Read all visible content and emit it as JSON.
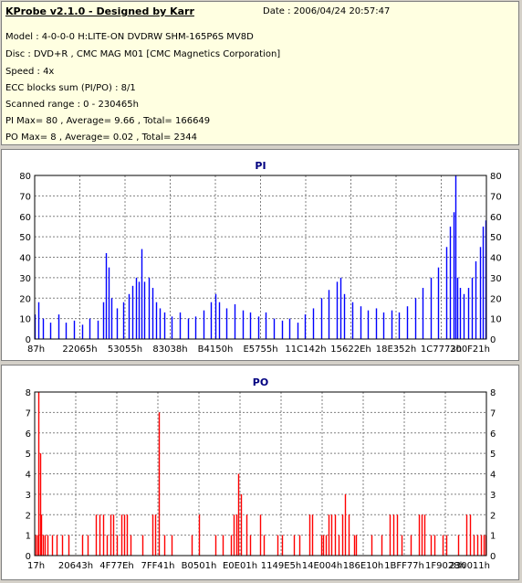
{
  "header": {
    "title": "KProbe v2.1.0 - Designed by Karr",
    "date": "Date : 2006/04/24 20:57:47",
    "lines": [
      "Model : 4-0-0-0 H:LITE-ON DVDRW SHM-165P6S MV8D",
      "Disc : DVD+R , CMC MAG M01 [CMC Magnetics Corporation]",
      "Speed : 4x",
      "ECC blocks sum (PI/PO) : 8/1",
      "Scanned range : 0 - 230465h",
      "PI Max= 80 , Average= 9.66 , Total= 166649",
      "PO Max= 8 , Average= 0.02 , Total= 2344"
    ]
  },
  "colors": {
    "pi": "#0000ff",
    "po": "#ff0000",
    "grid": "#808080",
    "title": "#000080"
  },
  "chart_data": [
    {
      "type": "bar",
      "title": "PI",
      "ylim": [
        0,
        80
      ],
      "yticks": [
        0,
        10,
        20,
        30,
        40,
        50,
        60,
        70,
        80
      ],
      "xlim": [
        0,
        230465
      ],
      "xtick_labels": [
        "87h",
        "22065h",
        "53055h",
        "83038h",
        "B4150h",
        "E5755h",
        "11C142h",
        "15622Eh",
        "18E352h",
        "1C7773h",
        "200F21h"
      ],
      "series": [
        {
          "values": [
            {
              "x": 0,
              "y": 12
            },
            {
              "x": 2000,
              "y": 18
            },
            {
              "x": 4000,
              "y": 10
            },
            {
              "x": 8000,
              "y": 8
            },
            {
              "x": 12000,
              "y": 12
            },
            {
              "x": 16000,
              "y": 8
            },
            {
              "x": 20000,
              "y": 9
            },
            {
              "x": 24000,
              "y": 7
            },
            {
              "x": 28000,
              "y": 10
            },
            {
              "x": 32000,
              "y": 9
            },
            {
              "x": 35000,
              "y": 18
            },
            {
              "x": 36500,
              "y": 42
            },
            {
              "x": 37500,
              "y": 35
            },
            {
              "x": 39000,
              "y": 20
            },
            {
              "x": 42000,
              "y": 15
            },
            {
              "x": 45000,
              "y": 18
            },
            {
              "x": 48000,
              "y": 22
            },
            {
              "x": 50000,
              "y": 26
            },
            {
              "x": 51500,
              "y": 30
            },
            {
              "x": 53000,
              "y": 28
            },
            {
              "x": 54500,
              "y": 44
            },
            {
              "x": 56000,
              "y": 28
            },
            {
              "x": 58000,
              "y": 30
            },
            {
              "x": 60000,
              "y": 25
            },
            {
              "x": 62000,
              "y": 18
            },
            {
              "x": 64000,
              "y": 15
            },
            {
              "x": 66000,
              "y": 13
            },
            {
              "x": 70000,
              "y": 11
            },
            {
              "x": 74000,
              "y": 13
            },
            {
              "x": 78000,
              "y": 10
            },
            {
              "x": 82000,
              "y": 11
            },
            {
              "x": 86000,
              "y": 14
            },
            {
              "x": 90000,
              "y": 18
            },
            {
              "x": 92000,
              "y": 22
            },
            {
              "x": 94000,
              "y": 18
            },
            {
              "x": 98000,
              "y": 15
            },
            {
              "x": 102000,
              "y": 17
            },
            {
              "x": 106000,
              "y": 14
            },
            {
              "x": 110000,
              "y": 13
            },
            {
              "x": 114000,
              "y": 11
            },
            {
              "x": 118000,
              "y": 13
            },
            {
              "x": 122000,
              "y": 10
            },
            {
              "x": 126000,
              "y": 9
            },
            {
              "x": 130000,
              "y": 10
            },
            {
              "x": 134000,
              "y": 8
            },
            {
              "x": 138000,
              "y": 12
            },
            {
              "x": 142000,
              "y": 15
            },
            {
              "x": 146000,
              "y": 20
            },
            {
              "x": 150000,
              "y": 24
            },
            {
              "x": 154000,
              "y": 28
            },
            {
              "x": 156000,
              "y": 30
            },
            {
              "x": 158000,
              "y": 22
            },
            {
              "x": 162000,
              "y": 18
            },
            {
              "x": 166000,
              "y": 16
            },
            {
              "x": 170000,
              "y": 14
            },
            {
              "x": 174000,
              "y": 15
            },
            {
              "x": 178000,
              "y": 13
            },
            {
              "x": 182000,
              "y": 14
            },
            {
              "x": 186000,
              "y": 13
            },
            {
              "x": 190000,
              "y": 16
            },
            {
              "x": 194000,
              "y": 20
            },
            {
              "x": 198000,
              "y": 25
            },
            {
              "x": 202000,
              "y": 30
            },
            {
              "x": 206000,
              "y": 35
            },
            {
              "x": 210000,
              "y": 45
            },
            {
              "x": 212000,
              "y": 55
            },
            {
              "x": 213500,
              "y": 62
            },
            {
              "x": 214500,
              "y": 80
            },
            {
              "x": 215500,
              "y": 30
            },
            {
              "x": 217000,
              "y": 25
            },
            {
              "x": 219000,
              "y": 22
            },
            {
              "x": 221000,
              "y": 25
            },
            {
              "x": 223000,
              "y": 30
            },
            {
              "x": 225000,
              "y": 38
            },
            {
              "x": 227000,
              "y": 45
            },
            {
              "x": 228500,
              "y": 55
            },
            {
              "x": 230000,
              "y": 58
            }
          ]
        }
      ]
    },
    {
      "type": "bar",
      "title": "PO",
      "ylim": [
        0,
        8
      ],
      "yticks": [
        0,
        1,
        2,
        3,
        4,
        5,
        6,
        7,
        8
      ],
      "xlim": [
        0,
        230465
      ],
      "xtick_labels": [
        "17h",
        "20643h",
        "4F77Eh",
        "7FF41h",
        "B0501h",
        "E0E01h",
        "1149E5h",
        "14E004h",
        "186E10h",
        "1BFF77h",
        "1F9028h",
        "230011h"
      ],
      "series": [
        {
          "values": [
            {
              "x": 300,
              "y": 1
            },
            {
              "x": 1200,
              "y": 1
            },
            {
              "x": 2000,
              "y": 8
            },
            {
              "x": 2600,
              "y": 5
            },
            {
              "x": 3200,
              "y": 2
            },
            {
              "x": 4000,
              "y": 1
            },
            {
              "x": 5000,
              "y": 1
            },
            {
              "x": 6500,
              "y": 1
            },
            {
              "x": 9000,
              "y": 1
            },
            {
              "x": 11000,
              "y": 1
            },
            {
              "x": 14000,
              "y": 1
            },
            {
              "x": 17000,
              "y": 1
            },
            {
              "x": 24000,
              "y": 1
            },
            {
              "x": 27000,
              "y": 1
            },
            {
              "x": 31000,
              "y": 2
            },
            {
              "x": 33000,
              "y": 2
            },
            {
              "x": 35000,
              "y": 2
            },
            {
              "x": 37000,
              "y": 1
            },
            {
              "x": 38500,
              "y": 2
            },
            {
              "x": 40000,
              "y": 2
            },
            {
              "x": 42000,
              "y": 1
            },
            {
              "x": 44000,
              "y": 2
            },
            {
              "x": 45500,
              "y": 2
            },
            {
              "x": 47000,
              "y": 2
            },
            {
              "x": 49000,
              "y": 1
            },
            {
              "x": 55000,
              "y": 1
            },
            {
              "x": 60000,
              "y": 2
            },
            {
              "x": 61500,
              "y": 2
            },
            {
              "x": 63500,
              "y": 7
            },
            {
              "x": 66000,
              "y": 1
            },
            {
              "x": 70000,
              "y": 1
            },
            {
              "x": 80000,
              "y": 1
            },
            {
              "x": 84000,
              "y": 2
            },
            {
              "x": 92000,
              "y": 1
            },
            {
              "x": 96000,
              "y": 1
            },
            {
              "x": 100000,
              "y": 1
            },
            {
              "x": 101500,
              "y": 2
            },
            {
              "x": 103000,
              "y": 2
            },
            {
              "x": 104000,
              "y": 4
            },
            {
              "x": 105000,
              "y": 3
            },
            {
              "x": 108000,
              "y": 2
            },
            {
              "x": 110000,
              "y": 1
            },
            {
              "x": 115000,
              "y": 2
            },
            {
              "x": 117000,
              "y": 1
            },
            {
              "x": 124000,
              "y": 1
            },
            {
              "x": 126000,
              "y": 1
            },
            {
              "x": 132000,
              "y": 1
            },
            {
              "x": 135000,
              "y": 1
            },
            {
              "x": 140000,
              "y": 2
            },
            {
              "x": 141500,
              "y": 2
            },
            {
              "x": 146000,
              "y": 1
            },
            {
              "x": 147000,
              "y": 1
            },
            {
              "x": 148500,
              "y": 1
            },
            {
              "x": 150000,
              "y": 2
            },
            {
              "x": 151500,
              "y": 2
            },
            {
              "x": 153000,
              "y": 2
            },
            {
              "x": 155000,
              "y": 1
            },
            {
              "x": 157000,
              "y": 2
            },
            {
              "x": 158500,
              "y": 3
            },
            {
              "x": 160000,
              "y": 2
            },
            {
              "x": 163000,
              "y": 1
            },
            {
              "x": 164000,
              "y": 1
            },
            {
              "x": 172000,
              "y": 1
            },
            {
              "x": 177000,
              "y": 1
            },
            {
              "x": 181000,
              "y": 2
            },
            {
              "x": 183000,
              "y": 2
            },
            {
              "x": 185000,
              "y": 2
            },
            {
              "x": 187000,
              "y": 1
            },
            {
              "x": 192000,
              "y": 1
            },
            {
              "x": 196000,
              "y": 2
            },
            {
              "x": 197500,
              "y": 2
            },
            {
              "x": 199000,
              "y": 2
            },
            {
              "x": 202000,
              "y": 1
            },
            {
              "x": 204000,
              "y": 1
            },
            {
              "x": 208000,
              "y": 1
            },
            {
              "x": 210000,
              "y": 1
            },
            {
              "x": 216000,
              "y": 1
            },
            {
              "x": 220000,
              "y": 2
            },
            {
              "x": 222000,
              "y": 2
            },
            {
              "x": 224000,
              "y": 1
            },
            {
              "x": 226000,
              "y": 1
            },
            {
              "x": 227500,
              "y": 1
            },
            {
              "x": 229000,
              "y": 1
            },
            {
              "x": 230000,
              "y": 1
            }
          ]
        }
      ]
    }
  ]
}
